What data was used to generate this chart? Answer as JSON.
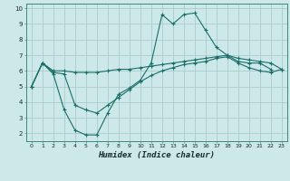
{
  "xlabel": "Humidex (Indice chaleur)",
  "background_color": "#cce8e8",
  "grid_color": "#aacccc",
  "line_color": "#1a6e6a",
  "xlim": [
    -0.5,
    23.5
  ],
  "ylim": [
    1.5,
    10.3
  ],
  "yticks": [
    2,
    3,
    4,
    5,
    6,
    7,
    8,
    9,
    10
  ],
  "xticks": [
    0,
    1,
    2,
    3,
    4,
    5,
    6,
    7,
    8,
    9,
    10,
    11,
    12,
    13,
    14,
    15,
    16,
    17,
    18,
    19,
    20,
    21,
    22,
    23
  ],
  "line1_x": [
    0,
    1,
    2,
    3,
    4,
    5,
    6,
    7,
    8,
    9,
    10,
    11,
    12,
    13,
    14,
    15,
    16,
    17,
    18,
    19,
    20,
    21,
    22
  ],
  "line1_y": [
    5.0,
    6.5,
    5.8,
    3.5,
    2.2,
    1.9,
    1.9,
    3.3,
    4.5,
    4.9,
    5.4,
    6.5,
    9.6,
    9.0,
    9.6,
    9.7,
    8.6,
    7.5,
    7.0,
    6.6,
    6.5,
    6.5,
    6.1
  ],
  "line2_x": [
    0,
    1,
    2,
    3,
    4,
    5,
    6,
    7,
    8,
    9,
    10,
    11,
    12,
    13,
    14,
    15,
    16,
    17,
    18,
    19,
    20,
    21,
    22,
    23
  ],
  "line2_y": [
    5.0,
    6.5,
    6.0,
    6.0,
    5.9,
    5.9,
    5.9,
    6.0,
    6.1,
    6.1,
    6.2,
    6.3,
    6.4,
    6.5,
    6.6,
    6.7,
    6.8,
    6.9,
    7.0,
    6.8,
    6.7,
    6.6,
    6.5,
    6.1
  ],
  "line3_x": [
    0,
    1,
    2,
    3,
    4,
    5,
    6,
    7,
    8,
    9,
    10,
    11,
    12,
    13,
    14,
    15,
    16,
    17,
    18,
    19,
    20,
    21,
    22,
    23
  ],
  "line3_y": [
    5.0,
    6.5,
    5.9,
    5.8,
    3.8,
    3.5,
    3.3,
    3.8,
    4.3,
    4.8,
    5.3,
    5.7,
    6.0,
    6.2,
    6.4,
    6.5,
    6.6,
    6.8,
    6.9,
    6.5,
    6.2,
    6.0,
    5.9,
    6.1
  ]
}
